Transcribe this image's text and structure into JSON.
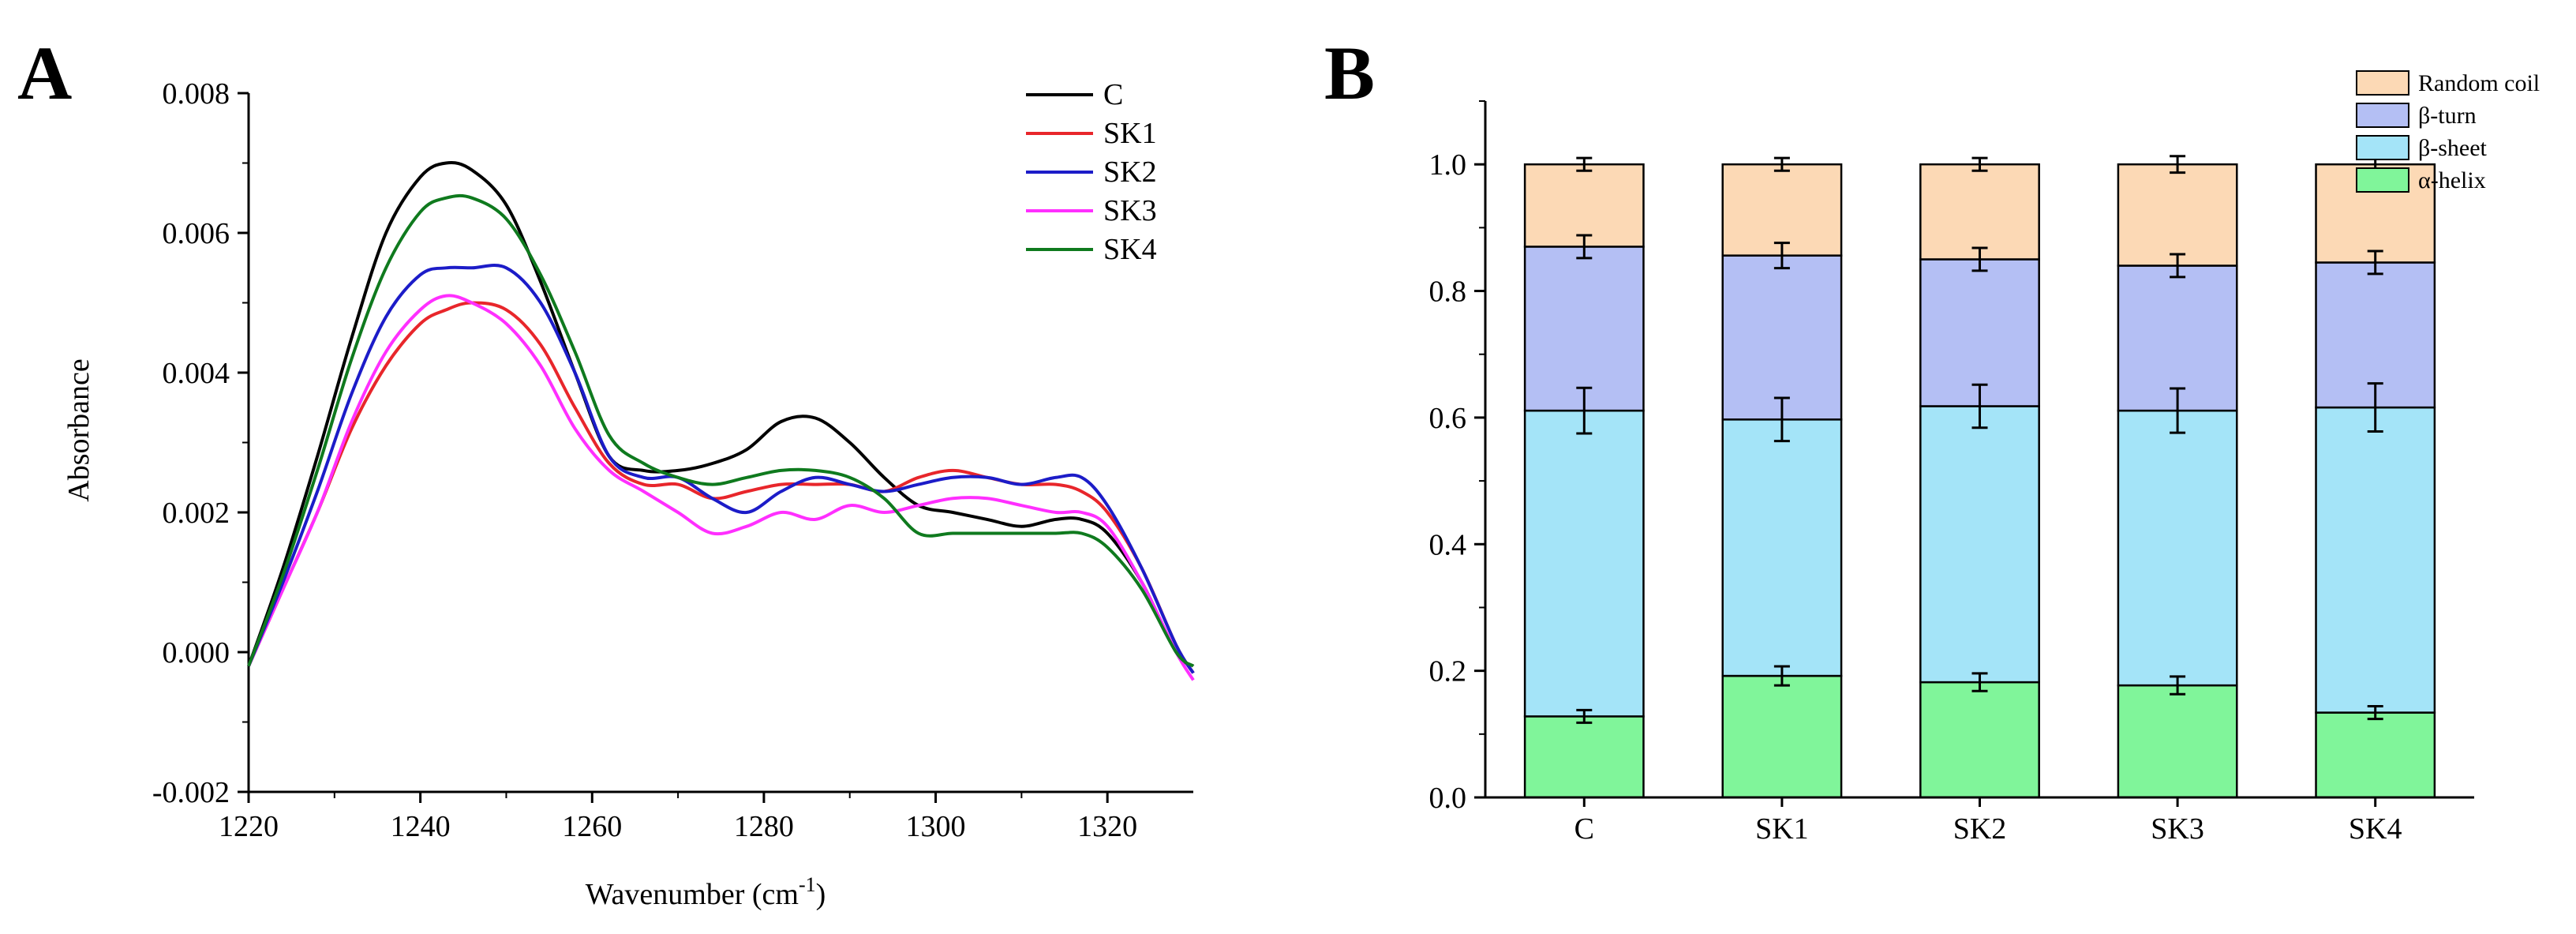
{
  "chart_data": [
    {
      "type": "line",
      "panel_label": "A",
      "title": "",
      "xlabel_main": "Wavenumber (cm",
      "xlabel_sup": "-1",
      "xlabel_end": ")",
      "ylabel": "Absorbance",
      "xlim": [
        1220,
        1330
      ],
      "ylim": [
        -0.002,
        0.008
      ],
      "xticks": [
        1220,
        1240,
        1260,
        1280,
        1300,
        1320
      ],
      "xtick_labels": [
        "1220",
        "1240",
        "1260",
        "1280",
        "1300",
        "1320"
      ],
      "yticks": [
        -0.002,
        0.0,
        0.002,
        0.004,
        0.006,
        0.008
      ],
      "ytick_labels": [
        "-0.002",
        "0.000",
        "0.002",
        "0.004",
        "0.006",
        "0.008"
      ],
      "grid": false,
      "legend_position": "top-right",
      "x": [
        1220,
        1224,
        1228,
        1232,
        1236,
        1240,
        1243,
        1246,
        1250,
        1254,
        1258,
        1262,
        1266,
        1270,
        1274,
        1278,
        1282,
        1286,
        1290,
        1294,
        1298,
        1302,
        1306,
        1310,
        1314,
        1317,
        1320,
        1324,
        1328,
        1330
      ],
      "series": [
        {
          "name": "C",
          "color": "#000000",
          "values": [
            -0.0002,
            0.0012,
            0.0028,
            0.0045,
            0.006,
            0.0068,
            0.007,
            0.0069,
            0.0064,
            0.0053,
            0.004,
            0.0028,
            0.0026,
            0.0026,
            0.0027,
            0.0029,
            0.0033,
            0.00335,
            0.003,
            0.0025,
            0.0021,
            0.002,
            0.0019,
            0.0018,
            0.0019,
            0.0019,
            0.0017,
            0.001,
            0.0,
            -0.0002
          ]
        },
        {
          "name": "SK1",
          "color": "#e8262b",
          "values": [
            -0.0002,
            0.0009,
            0.002,
            0.0032,
            0.0041,
            0.0047,
            0.0049,
            0.005,
            0.0049,
            0.0044,
            0.0035,
            0.0027,
            0.0024,
            0.0024,
            0.0022,
            0.0023,
            0.0024,
            0.0024,
            0.0024,
            0.0023,
            0.0025,
            0.0026,
            0.0025,
            0.0024,
            0.0024,
            0.0023,
            0.002,
            0.0012,
            0.0001,
            -0.0003
          ]
        },
        {
          "name": "SK2",
          "color": "#1c1cc8",
          "values": [
            -0.0002,
            0.001,
            0.0023,
            0.0037,
            0.0048,
            0.0054,
            0.0055,
            0.0055,
            0.0055,
            0.005,
            0.004,
            0.0028,
            0.0025,
            0.0025,
            0.0022,
            0.002,
            0.0023,
            0.0025,
            0.0024,
            0.0023,
            0.0024,
            0.0025,
            0.0025,
            0.0024,
            0.0025,
            0.0025,
            0.0021,
            0.0012,
            0.0001,
            -0.0003
          ]
        },
        {
          "name": "SK3",
          "color": "#ff2fff",
          "values": [
            -0.0002,
            0.0009,
            0.002,
            0.0033,
            0.0043,
            0.0049,
            0.0051,
            0.005,
            0.0047,
            0.0041,
            0.0032,
            0.0026,
            0.0023,
            0.002,
            0.0017,
            0.0018,
            0.002,
            0.0019,
            0.0021,
            0.002,
            0.0021,
            0.0022,
            0.0022,
            0.0021,
            0.002,
            0.002,
            0.0018,
            0.001,
            0.0,
            -0.0004
          ]
        },
        {
          "name": "SK4",
          "color": "#0f7a1e",
          "values": [
            -0.0002,
            0.0011,
            0.0026,
            0.0042,
            0.0055,
            0.0063,
            0.0065,
            0.0065,
            0.0062,
            0.0054,
            0.0043,
            0.0031,
            0.0027,
            0.0025,
            0.0024,
            0.0025,
            0.0026,
            0.0026,
            0.0025,
            0.0022,
            0.0017,
            0.0017,
            0.0017,
            0.0017,
            0.0017,
            0.0017,
            0.0015,
            0.0009,
            0.0,
            -0.0002
          ]
        }
      ]
    },
    {
      "type": "bar",
      "stacked": true,
      "panel_label": "B",
      "title": "",
      "xlabel": "",
      "ylabel": "",
      "categories": [
        "C",
        "SK1",
        "SK2",
        "SK3",
        "SK4"
      ],
      "ylim": [
        0.0,
        1.1
      ],
      "yticks": [
        0.0,
        0.2,
        0.4,
        0.6,
        0.8,
        1.0
      ],
      "ytick_labels": [
        "0.0",
        "0.2",
        "0.4",
        "0.6",
        "0.8",
        "1.0"
      ],
      "grid": false,
      "legend_position": "top-right",
      "series": [
        {
          "name": "α-helix",
          "color": "#80f59a",
          "values": [
            0.128,
            0.192,
            0.182,
            0.177,
            0.134
          ],
          "errors": [
            0.01,
            0.015,
            0.014,
            0.014,
            0.01
          ]
        },
        {
          "name": "β-sheet",
          "color": "#a4e4f8",
          "values": [
            0.483,
            0.405,
            0.436,
            0.434,
            0.482
          ],
          "errors": [
            0.036,
            0.034,
            0.034,
            0.035,
            0.038
          ]
        },
        {
          "name": "β-turn",
          "color": "#b4bff4",
          "values": [
            0.259,
            0.259,
            0.232,
            0.229,
            0.229
          ],
          "errors": [
            0.018,
            0.02,
            0.018,
            0.018,
            0.018
          ]
        },
        {
          "name": "Random coil",
          "color": "#fcd9b5",
          "values": [
            0.13,
            0.144,
            0.15,
            0.16,
            0.155
          ],
          "errors": [
            0.01,
            0.01,
            0.01,
            0.013,
            0.011
          ]
        }
      ]
    }
  ]
}
